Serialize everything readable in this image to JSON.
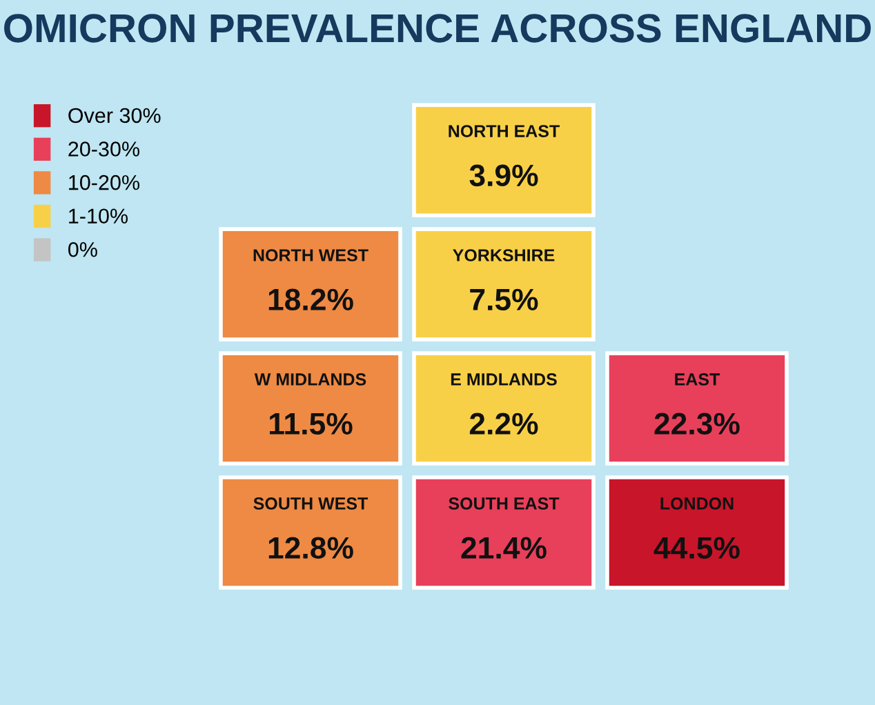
{
  "chart_data": {
    "type": "other",
    "title": "OMICRON PREVALENCE ACROSS ENGLAND",
    "categories": [
      "NORTH EAST",
      "YORKSHIRE",
      "E MIDLANDS",
      "NORTH WEST",
      "EAST",
      "W MIDLANDS",
      "LONDON",
      "SOUTH WEST",
      "SOUTH EAST"
    ],
    "values": [
      3.9,
      7.5,
      2.2,
      18.2,
      22.3,
      11.5,
      44.5,
      12.8,
      21.4
    ],
    "value_labels": [
      "3.9%",
      "7.5%",
      "2.2%",
      "18.2%",
      "22.3%",
      "11.5%",
      "44.5%",
      "12.8%",
      "21.4%"
    ],
    "colors": [
      "#f8d048",
      "#f8d048",
      "#f8d048",
      "#ee8a44",
      "#e8405a",
      "#ee8a44",
      "#c8152a",
      "#ee8a44",
      "#e8405a"
    ],
    "legend": "top left",
    "series": [
      {
        "name": "Over 30%",
        "color": "#c8152a",
        "values": [
          null,
          null,
          null,
          null,
          null,
          null,
          null,
          null,
          null
        ]
      },
      {
        "name": "20-30%",
        "color": "#e8405a",
        "values": [
          null,
          null,
          null,
          null,
          null,
          null,
          null,
          null,
          null
        ]
      },
      {
        "name": "10-20%",
        "color": "#ee8a44",
        "values": [
          null,
          null,
          null,
          null,
          null,
          null,
          null,
          null,
          null
        ]
      },
      {
        "name": "1-10%",
        "color": "#f8d048",
        "values": [
          null,
          null,
          null,
          null,
          null,
          null,
          null,
          null,
          null
        ]
      },
      {
        "name": "0%",
        "color": "#c4c4c4",
        "values": [
          null,
          null,
          null,
          null,
          null,
          null,
          null,
          null,
          null
        ]
      }
    ]
  }
}
